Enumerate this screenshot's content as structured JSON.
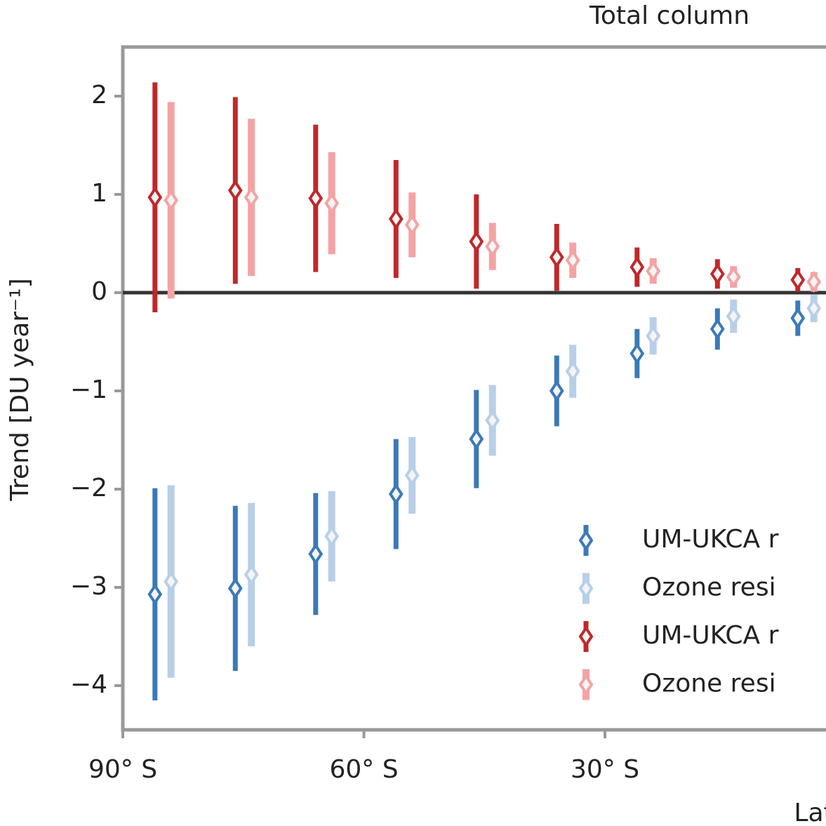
{
  "chart_data": {
    "type": "errorbar",
    "title": "Total column",
    "xlabel": "Latitude",
    "ylabel": "Trend [DU year⁻¹]",
    "xlim": [
      -90,
      90
    ],
    "ylim": [
      -4.45,
      2.5
    ],
    "xticks": [
      {
        "value": -90,
        "label": "90° S"
      },
      {
        "value": -60,
        "label": "60° S"
      },
      {
        "value": -30,
        "label": "30° S"
      }
    ],
    "yticks": [
      {
        "value": -4,
        "label": "−4"
      },
      {
        "value": -3,
        "label": "−3"
      },
      {
        "value": -2,
        "label": "−2"
      },
      {
        "value": -1,
        "label": "−1"
      },
      0,
      1,
      2
    ],
    "hline": 0,
    "legend": "lower right",
    "series": [
      {
        "name": "UM-UKCA r",
        "color": "#3a7ab8",
        "x": [
          -86,
          -76,
          -66,
          -56,
          -46,
          -36,
          -26,
          -16,
          -6
        ],
        "values": [
          -3.07,
          -3.01,
          -2.66,
          -2.05,
          -1.49,
          -1.0,
          -0.62,
          -0.37,
          -0.26
        ],
        "errors": [
          1.08,
          0.84,
          0.62,
          0.56,
          0.5,
          0.36,
          0.25,
          0.21,
          0.18
        ]
      },
      {
        "name": "Ozone resi",
        "color": "#b8cfe8",
        "x": [
          -84,
          -74,
          -64,
          -54,
          -44,
          -34,
          -24,
          -14,
          -4
        ],
        "values": [
          -2.94,
          -2.87,
          -2.48,
          -1.86,
          -1.3,
          -0.8,
          -0.44,
          -0.24,
          -0.16
        ],
        "errors": [
          0.98,
          0.73,
          0.46,
          0.39,
          0.36,
          0.27,
          0.19,
          0.17,
          0.14
        ]
      },
      {
        "name": "UM-UKCA r",
        "color": "#c0282a",
        "x": [
          -86,
          -76,
          -66,
          -56,
          -46,
          -36,
          -26,
          -16,
          -6
        ],
        "values": [
          0.97,
          1.04,
          0.96,
          0.75,
          0.52,
          0.36,
          0.26,
          0.19,
          0.13
        ],
        "errors": [
          1.17,
          0.95,
          0.75,
          0.6,
          0.48,
          0.34,
          0.2,
          0.15,
          0.12
        ]
      },
      {
        "name": "Ozone resi",
        "color": "#f4a3a3",
        "x": [
          -84,
          -74,
          -64,
          -54,
          -44,
          -34,
          -24,
          -14,
          -4
        ],
        "values": [
          0.94,
          0.97,
          0.91,
          0.69,
          0.47,
          0.33,
          0.22,
          0.16,
          0.11
        ],
        "errors": [
          1.0,
          0.8,
          0.52,
          0.33,
          0.24,
          0.18,
          0.13,
          0.11,
          0.1
        ]
      }
    ]
  }
}
